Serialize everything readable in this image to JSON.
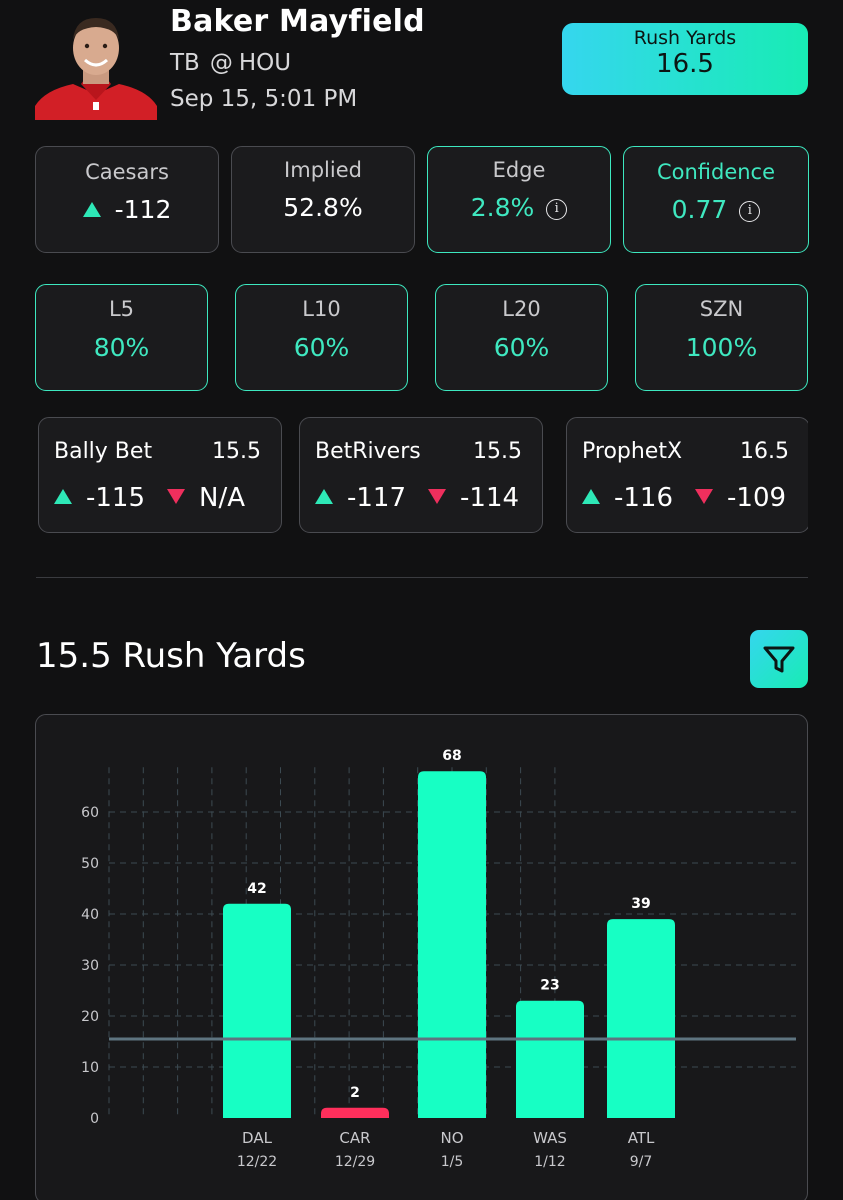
{
  "player": {
    "name": "Baker Mayfield",
    "team": "TB",
    "at": "@",
    "opponent": "HOU",
    "game_time": "Sep 15, 5:01 PM"
  },
  "prop": {
    "label": "Rush Yards",
    "line": "16.5"
  },
  "stats": {
    "book": {
      "label": "Caesars",
      "value": "-112"
    },
    "implied": {
      "label": "Implied",
      "value": "52.8%"
    },
    "edge": {
      "label": "Edge",
      "value": "2.8%"
    },
    "confidence": {
      "label": "Confidence",
      "value": "0.77"
    }
  },
  "ranges": [
    {
      "label": "L5",
      "value": "80%"
    },
    {
      "label": "L10",
      "value": "60%"
    },
    {
      "label": "L20",
      "value": "60%"
    },
    {
      "label": "SZN",
      "value": "100%"
    }
  ],
  "books": [
    {
      "name": "Bally Bet",
      "line": "15.5",
      "over": "-115",
      "under": "N/A"
    },
    {
      "name": "BetRivers",
      "line": "15.5",
      "over": "-117",
      "under": "-114"
    },
    {
      "name": "ProphetX",
      "line": "16.5",
      "over": "-116",
      "under": "-109"
    }
  ],
  "section_title": "15.5 Rush Yards",
  "colors": {
    "hit": "#17ffc4",
    "miss": "#ff2f5c",
    "accent": "#3fe8c0",
    "threshold": "#5e7480"
  },
  "icons": {
    "filter": "filter-icon",
    "info": "info-icon",
    "up": "up-arrow-icon",
    "down": "down-arrow-icon"
  },
  "chart_data": {
    "type": "bar",
    "categories": [
      "DAL",
      "CAR",
      "NO",
      "WAS",
      "ATL"
    ],
    "dates": [
      "12/22",
      "12/29",
      "1/5",
      "1/12",
      "9/7"
    ],
    "values": [
      42,
      2,
      68,
      23,
      39
    ],
    "threshold": 15.5,
    "yticks": [
      0,
      10,
      20,
      30,
      40,
      50,
      60
    ],
    "ylim": [
      0,
      68
    ],
    "grid": true,
    "title": "",
    "xlabel": "",
    "ylabel": ""
  }
}
